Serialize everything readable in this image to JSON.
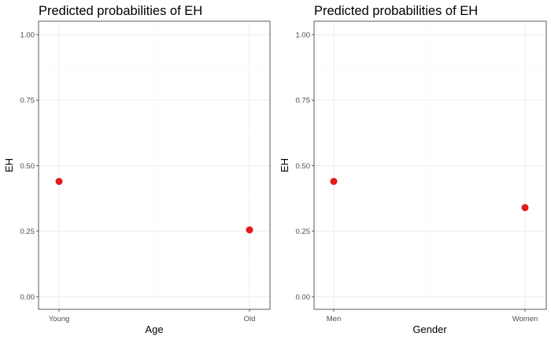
{
  "chart_data": [
    {
      "type": "scatter",
      "title": "Predicted probabilities of EH",
      "xlabel": "Age",
      "ylabel": "EH",
      "categories": [
        "Young",
        "Old"
      ],
      "values": [
        0.44,
        0.255
      ],
      "ylim": [
        0,
        1
      ],
      "yticks": [
        "0.00",
        "0.25",
        "0.50",
        "0.75",
        "1.00"
      ],
      "grid": true,
      "point_color": "#e31a1c"
    },
    {
      "type": "scatter",
      "title": "Predicted probabilities of EH",
      "xlabel": "Gender",
      "ylabel": "EH",
      "categories": [
        "Men",
        "Women"
      ],
      "values": [
        0.44,
        0.34
      ],
      "ylim": [
        0,
        1
      ],
      "yticks": [
        "0.00",
        "0.25",
        "0.50",
        "0.75",
        "1.00"
      ],
      "grid": true,
      "point_color": "#e31a1c"
    }
  ]
}
